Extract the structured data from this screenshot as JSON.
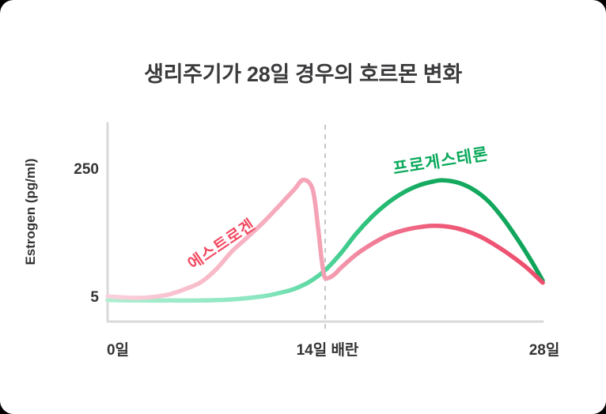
{
  "title": "생리주기가 28일 경우의 호르몬 변화",
  "y_axis": {
    "label": "Estrogen (pg/ml)",
    "ticks": [
      "250",
      "5"
    ]
  },
  "x_axis": {
    "ticks": [
      "0일",
      "14일 배란",
      "28일"
    ]
  },
  "colors": {
    "title_text": "#3b3b3d",
    "tick_text": "#343436",
    "axis_line": "#d9d9d9",
    "dashed_line": "#c7c7c7",
    "estrogen_label": "#f24b62",
    "progesterone_label": "#09a95b",
    "estrogen_gradient": [
      [
        "0%",
        "#fad2dc"
      ],
      [
        "40%",
        "#f6a9bb"
      ],
      [
        "50%",
        "#f4a0b3"
      ],
      [
        "62%",
        "#f07a95"
      ],
      [
        "75%",
        "#ee5c7a"
      ],
      [
        "100%",
        "#ee4e6e"
      ]
    ],
    "progesterone_gradient": [
      [
        "0%",
        "#aeeed2"
      ],
      [
        "35%",
        "#8ae6c0"
      ],
      [
        "50%",
        "#53d59c"
      ],
      [
        "60%",
        "#2cc179"
      ],
      [
        "72%",
        "#16ab61"
      ],
      [
        "100%",
        "#0fa45a"
      ]
    ]
  },
  "chart_data": {
    "type": "line",
    "title": "생리주기가 28일 경우의 호르몬 변화",
    "xlabel": "",
    "ylabel": "Estrogen (pg/ml)",
    "xlim": [
      0,
      28
    ],
    "ylim": [
      0,
      280
    ],
    "y_ticks": [
      5,
      250
    ],
    "x_ticks": [
      0,
      14,
      28
    ],
    "x_tick_labels": [
      "0일",
      "14일 배란",
      "28일"
    ],
    "grid": false,
    "legend_position": "on-curve",
    "annotations": [
      {
        "type": "vline",
        "x": 14,
        "style": "dashed",
        "label": "배란"
      }
    ],
    "series": [
      {
        "name": "에스트로겐",
        "x": [
          0,
          1,
          2,
          3,
          4,
          5,
          6,
          7,
          8,
          9,
          10,
          11,
          12,
          12.6,
          13.2,
          13.55,
          13.75,
          13.95,
          14.2,
          14.6,
          15,
          16,
          17,
          18,
          19,
          20,
          21,
          22,
          23,
          24,
          25,
          26,
          27,
          28
        ],
        "y": [
          8,
          6,
          5,
          7,
          12,
          22,
          35,
          60,
          94,
          121,
          149,
          180,
          212,
          231,
          212,
          137,
          84,
          46,
          43,
          50,
          62,
          88,
          108,
          124,
          134,
          140,
          143,
          141,
          134,
          122,
          105,
          85,
          62,
          34
        ]
      },
      {
        "name": "프로게스테론",
        "x": [
          0,
          2,
          4,
          6,
          8,
          10,
          11,
          12,
          13,
          14,
          15,
          16,
          17,
          18,
          19,
          20,
          21,
          21.6,
          22.5,
          23.5,
          24.5,
          25.5,
          26.5,
          27.3,
          28
        ],
        "y": [
          1,
          0,
          0,
          0,
          2,
          8,
          14,
          22,
          36,
          58,
          90,
          128,
          160,
          186,
          206,
          220,
          228,
          230,
          226,
          213,
          190,
          155,
          112,
          74,
          38
        ]
      }
    ]
  }
}
